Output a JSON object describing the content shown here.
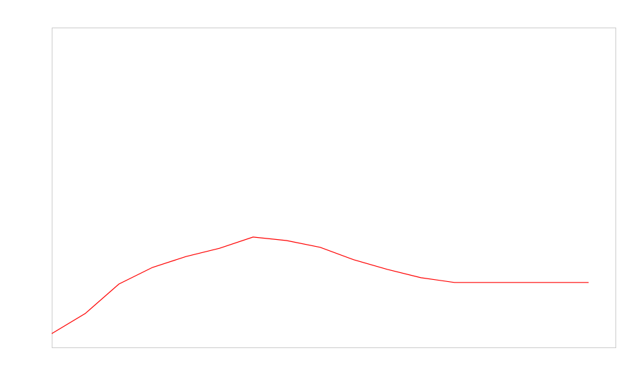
{
  "chart_data": {
    "type": "line",
    "x": [
      0,
      1,
      2,
      3,
      4,
      5,
      6,
      7,
      8,
      9,
      10,
      11,
      12,
      13,
      14,
      15,
      16
    ],
    "values": [
      4.3,
      10.6,
      19.8,
      25,
      28.4,
      31,
      34.5,
      33.4,
      31.3,
      27.4,
      24.4,
      21.8,
      20.3,
      20.3,
      20.3,
      20.3,
      20.3
    ],
    "color": "#ff0000",
    "xlim": [
      0,
      16.8
    ],
    "ylim": [
      0,
      100
    ]
  }
}
